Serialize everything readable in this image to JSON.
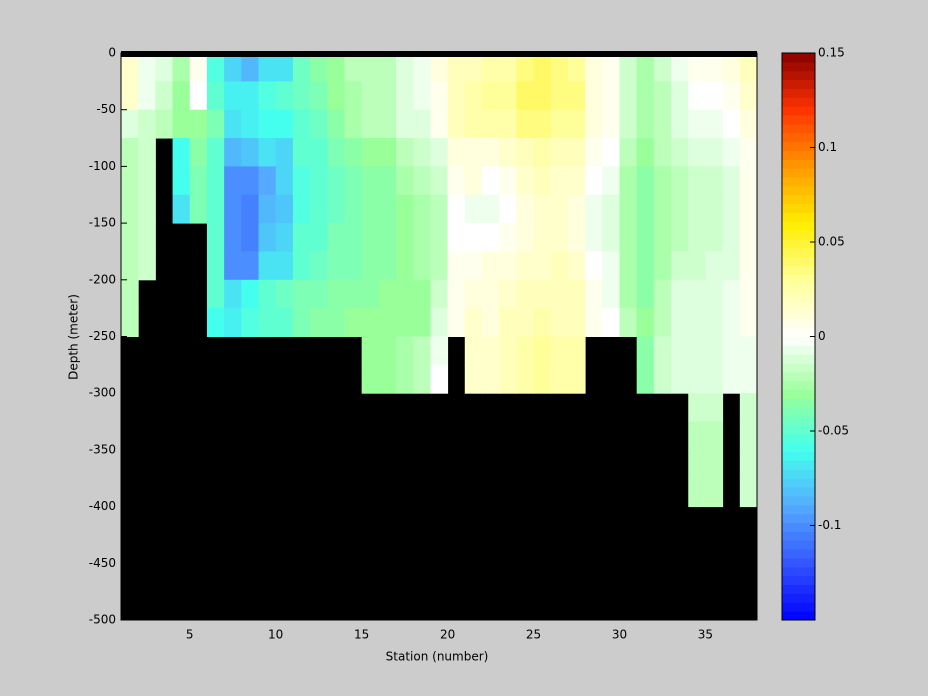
{
  "chart_data": {
    "type": "heatmap",
    "xlabel": "Station (number)",
    "ylabel": "Depth (meter)",
    "x": [
      1,
      2,
      3,
      4,
      5,
      6,
      7,
      8,
      9,
      10,
      11,
      12,
      13,
      14,
      15,
      16,
      17,
      18,
      19,
      20,
      21,
      22,
      23,
      24,
      25,
      26,
      27,
      28,
      29,
      30,
      31,
      32,
      33,
      34,
      35,
      36,
      37,
      38
    ],
    "y": [
      0,
      -25,
      -50,
      -75,
      -100,
      -125,
      -150,
      -175,
      -200,
      -225,
      -250,
      -275,
      -300,
      -325,
      -350,
      -375,
      -400,
      -425,
      -450,
      -475,
      -500
    ],
    "xlim": [
      1,
      38
    ],
    "ylim": [
      -500,
      0
    ],
    "xticks": [
      5,
      10,
      15,
      20,
      25,
      30,
      35
    ],
    "yticks": [
      -500,
      -450,
      -400,
      -350,
      -300,
      -250,
      -200,
      -150,
      -100,
      -50,
      0
    ],
    "clim": [
      -0.15,
      0.15
    ],
    "cticks": [
      -0.1,
      -0.05,
      0,
      0.05,
      0.1,
      0.15
    ],
    "colormap": [
      "#0000ff",
      "#3355ff",
      "#55aaff",
      "#44ffee",
      "#99ff99",
      "#ffffff",
      "#ffff99",
      "#ffee00",
      "#ff9900",
      "#ff3300",
      "#880000"
    ],
    "values": [
      [
        0.015,
        0.015,
        -0.01,
        -0.02,
        -0.02,
        -0.02,
        -0.02,
        -0.02,
        -0.02,
        -0.02,
        null,
        null,
        null,
        null,
        null,
        null,
        null,
        null,
        null,
        null
      ],
      [
        -0.005,
        -0.005,
        -0.015,
        -0.015,
        -0.015,
        -0.015,
        -0.015,
        -0.015,
        null,
        null,
        null,
        null,
        null,
        null,
        null,
        null,
        null,
        null,
        null,
        null
      ],
      [
        -0.01,
        -0.015,
        -0.02,
        null,
        null,
        null,
        null,
        null,
        null,
        null,
        null,
        null,
        null,
        null,
        null,
        null,
        null,
        null,
        null,
        null
      ],
      [
        -0.025,
        -0.03,
        -0.03,
        -0.06,
        -0.06,
        -0.07,
        null,
        null,
        null,
        null,
        null,
        null,
        null,
        null,
        null,
        null,
        null,
        null,
        null,
        null
      ],
      [
        0.005,
        0,
        -0.03,
        -0.035,
        -0.04,
        -0.04,
        null,
        null,
        null,
        null,
        null,
        null,
        null,
        null,
        null,
        null,
        null,
        null,
        null,
        null
      ],
      [
        -0.055,
        -0.05,
        -0.04,
        -0.05,
        -0.05,
        -0.05,
        -0.05,
        -0.05,
        -0.05,
        -0.06,
        null,
        null,
        null,
        null,
        null,
        null,
        null,
        null,
        null,
        null
      ],
      [
        -0.075,
        -0.065,
        -0.07,
        -0.085,
        -0.1,
        -0.1,
        -0.1,
        -0.1,
        -0.07,
        -0.065,
        null,
        null,
        null,
        null,
        null,
        null,
        null,
        null,
        null,
        null
      ],
      [
        -0.085,
        -0.065,
        -0.065,
        -0.08,
        -0.1,
        -0.105,
        -0.105,
        -0.1,
        -0.06,
        -0.055,
        null,
        null,
        null,
        null,
        null,
        null,
        null,
        null,
        null,
        null
      ],
      [
        -0.07,
        -0.055,
        -0.06,
        -0.07,
        -0.09,
        -0.085,
        -0.08,
        -0.07,
        -0.05,
        -0.05,
        null,
        null,
        null,
        null,
        null,
        null,
        null,
        null,
        null,
        null
      ],
      [
        -0.07,
        -0.05,
        -0.06,
        -0.075,
        -0.075,
        -0.08,
        -0.075,
        -0.07,
        -0.045,
        -0.05,
        null,
        null,
        null,
        null,
        null,
        null,
        null,
        null,
        null,
        null
      ],
      [
        -0.045,
        -0.045,
        -0.05,
        -0.05,
        -0.055,
        -0.055,
        -0.05,
        -0.05,
        -0.04,
        -0.04,
        null,
        null,
        null,
        null,
        null,
        null,
        null,
        null,
        null,
        null
      ],
      [
        -0.035,
        -0.04,
        -0.045,
        -0.05,
        -0.05,
        -0.05,
        -0.05,
        -0.045,
        -0.04,
        -0.035,
        null,
        null,
        null,
        null,
        null,
        null,
        null,
        null,
        null,
        null
      ],
      [
        -0.03,
        -0.03,
        -0.035,
        -0.04,
        -0.045,
        -0.045,
        -0.04,
        -0.04,
        -0.035,
        -0.035,
        null,
        null,
        null,
        null,
        null,
        null,
        null,
        null,
        null,
        null
      ],
      [
        -0.02,
        -0.025,
        -0.025,
        -0.035,
        -0.04,
        -0.04,
        -0.04,
        -0.04,
        -0.035,
        -0.03,
        null,
        null,
        null,
        null,
        null,
        null,
        null,
        null,
        null,
        null
      ],
      [
        -0.02,
        -0.02,
        -0.02,
        -0.03,
        -0.035,
        -0.035,
        -0.035,
        -0.035,
        -0.035,
        -0.03,
        -0.03,
        -0.03,
        null,
        null,
        null,
        null,
        null,
        null,
        null,
        null
      ],
      [
        -0.02,
        -0.02,
        -0.02,
        -0.03,
        -0.035,
        -0.035,
        -0.035,
        -0.035,
        -0.03,
        -0.03,
        -0.03,
        -0.03,
        null,
        null,
        null,
        null,
        null,
        null,
        null,
        null
      ],
      [
        -0.01,
        -0.01,
        -0.01,
        -0.02,
        -0.025,
        -0.03,
        -0.03,
        -0.03,
        -0.03,
        -0.03,
        -0.025,
        -0.025,
        null,
        null,
        null,
        null,
        null,
        null,
        null,
        null
      ],
      [
        -0.005,
        -0.005,
        -0.01,
        -0.015,
        -0.02,
        -0.025,
        -0.025,
        -0.025,
        -0.03,
        -0.03,
        -0.02,
        -0.02,
        null,
        null,
        null,
        null,
        null,
        null,
        null,
        null
      ],
      [
        0.01,
        0.005,
        0.005,
        -0.01,
        -0.015,
        -0.02,
        -0.02,
        -0.02,
        -0.015,
        -0.01,
        -0.005,
        0,
        null,
        null,
        null,
        null,
        null,
        null,
        null,
        null
      ],
      [
        0.02,
        0.02,
        0.02,
        0.01,
        0.005,
        0,
        0,
        0.005,
        0.005,
        0.005,
        null,
        null,
        null,
        null,
        null,
        null,
        null,
        null,
        null,
        null
      ],
      [
        0.02,
        0.025,
        0.025,
        0.01,
        0.01,
        -0.005,
        0,
        0.005,
        0.01,
        0.015,
        0.015,
        0.015,
        null,
        null,
        null,
        null,
        null,
        null,
        null,
        null
      ],
      [
        0.025,
        0.03,
        0.025,
        0.01,
        0,
        -0.005,
        0,
        0.01,
        0.01,
        0.01,
        0.015,
        0.015,
        null,
        null,
        null,
        null,
        null,
        null,
        null,
        null
      ],
      [
        0.025,
        0.03,
        0.025,
        0.015,
        0.005,
        0,
        0.005,
        0.01,
        0.015,
        0.02,
        0.02,
        0.02,
        null,
        null,
        null,
        null,
        null,
        null,
        null,
        null
      ],
      [
        0.035,
        0.04,
        0.035,
        0.02,
        0.015,
        0.01,
        0.01,
        0.015,
        0.02,
        0.02,
        0.025,
        0.025,
        null,
        null,
        null,
        null,
        null,
        null,
        null,
        null
      ],
      [
        0.04,
        0.04,
        0.035,
        0.025,
        0.02,
        0.015,
        0.015,
        0.015,
        0.02,
        0.025,
        0.03,
        0.03,
        null,
        null,
        null,
        null,
        null,
        null,
        null,
        null
      ],
      [
        0.035,
        0.035,
        0.03,
        0.02,
        0.015,
        0.015,
        0.015,
        0.02,
        0.02,
        0.02,
        0.025,
        0.025,
        null,
        null,
        null,
        null,
        null,
        null,
        null,
        null
      ],
      [
        0.03,
        0.035,
        0.03,
        0.02,
        0.015,
        0.01,
        0.01,
        0.015,
        0.02,
        0.02,
        0.025,
        0.025,
        null,
        null,
        null,
        null,
        null,
        null,
        null,
        null
      ],
      [
        0.01,
        0.01,
        0.01,
        0.005,
        0,
        -0.005,
        -0.005,
        0,
        0.005,
        0.005,
        null,
        null,
        null,
        null,
        null,
        null,
        null,
        null,
        null,
        null
      ],
      [
        0.005,
        0.005,
        0.005,
        0,
        -0.005,
        -0.01,
        -0.01,
        -0.005,
        -0.005,
        0,
        null,
        null,
        null,
        null,
        null,
        null,
        null,
        null,
        null,
        null
      ],
      [
        -0.015,
        -0.015,
        -0.015,
        -0.02,
        -0.025,
        -0.025,
        -0.025,
        -0.025,
        -0.025,
        -0.02,
        null,
        null,
        null,
        null,
        null,
        null,
        null,
        null,
        null,
        null
      ],
      [
        -0.025,
        -0.025,
        -0.025,
        -0.03,
        -0.035,
        -0.035,
        -0.035,
        -0.035,
        -0.035,
        -0.03,
        -0.035,
        -0.035,
        null,
        null,
        null,
        null,
        null,
        null,
        null,
        null
      ],
      [
        -0.015,
        -0.02,
        -0.02,
        -0.02,
        -0.025,
        -0.025,
        -0.025,
        -0.025,
        -0.02,
        -0.02,
        -0.015,
        -0.015,
        null,
        null,
        null,
        null,
        null,
        null,
        null,
        null
      ],
      [
        -0.005,
        -0.01,
        -0.01,
        -0.015,
        -0.02,
        -0.02,
        -0.02,
        -0.015,
        -0.01,
        -0.01,
        -0.01,
        -0.01,
        null,
        null,
        null,
        null,
        null,
        null,
        null,
        null
      ],
      [
        0.005,
        0,
        -0.005,
        -0.01,
        -0.015,
        -0.015,
        -0.015,
        -0.015,
        -0.01,
        -0.01,
        -0.01,
        -0.01,
        -0.015,
        -0.02,
        -0.02,
        -0.02,
        null,
        null,
        null,
        null
      ],
      [
        0.005,
        0,
        -0.005,
        -0.01,
        -0.015,
        -0.015,
        -0.015,
        -0.01,
        -0.01,
        -0.01,
        -0.01,
        -0.01,
        -0.015,
        -0.02,
        -0.02,
        -0.02,
        null,
        null,
        null,
        null
      ],
      [
        0.01,
        0.005,
        0,
        -0.005,
        -0.01,
        -0.01,
        -0.01,
        -0.01,
        -0.005,
        -0.005,
        -0.005,
        -0.005,
        null,
        null,
        null,
        null,
        null,
        null,
        null,
        null
      ],
      [
        0.02,
        0.015,
        0.01,
        0.005,
        0.005,
        0.005,
        0.005,
        0.005,
        0.005,
        0.005,
        -0.005,
        -0.005,
        -0.015,
        -0.015,
        -0.015,
        -0.015,
        null,
        null,
        null,
        null
      ]
    ]
  }
}
